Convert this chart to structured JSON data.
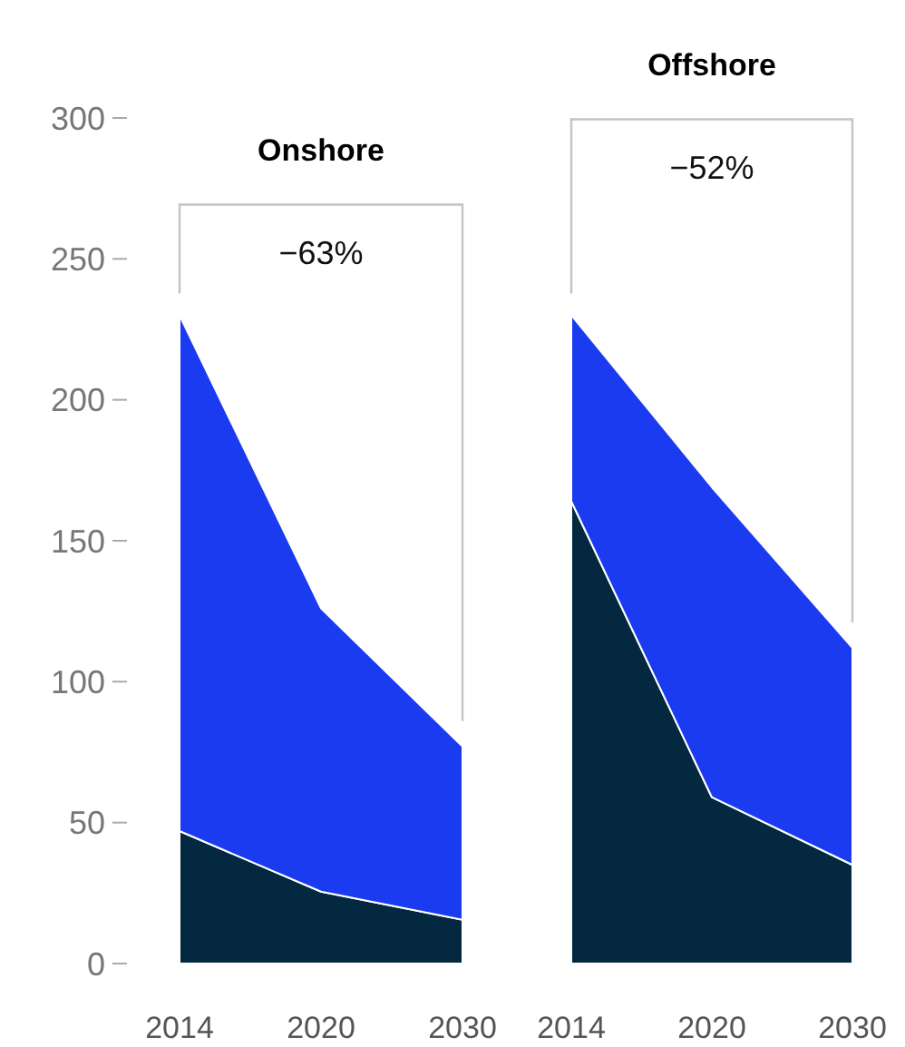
{
  "chart_data": [
    {
      "type": "area",
      "title": "Onshore",
      "categories": [
        "2014",
        "2020",
        "2030"
      ],
      "stacked": true,
      "ylim": [
        0,
        300
      ],
      "yticks": [
        0,
        50,
        100,
        150,
        200,
        250,
        300
      ],
      "series": [
        {
          "color": "#03283f",
          "values": [
            47,
            25.5,
            15.5
          ]
        },
        {
          "color": "#1a3bef",
          "values": [
            183,
            100.5,
            61.5
          ]
        }
      ],
      "annotations": [
        "−63%"
      ]
    },
    {
      "type": "area",
      "title": "Offshore",
      "categories": [
        "2014",
        "2020",
        "2030"
      ],
      "stacked": true,
      "ylim": [
        0,
        300
      ],
      "tick_labels": "x",
      "series": [
        {
          "color": "#03283f",
          "values": [
            164,
            59,
            35
          ]
        },
        {
          "color": "#1a3bef",
          "values": [
            66,
            110,
            77
          ]
        }
      ],
      "annotations": [
        "−52%"
      ]
    }
  ]
}
